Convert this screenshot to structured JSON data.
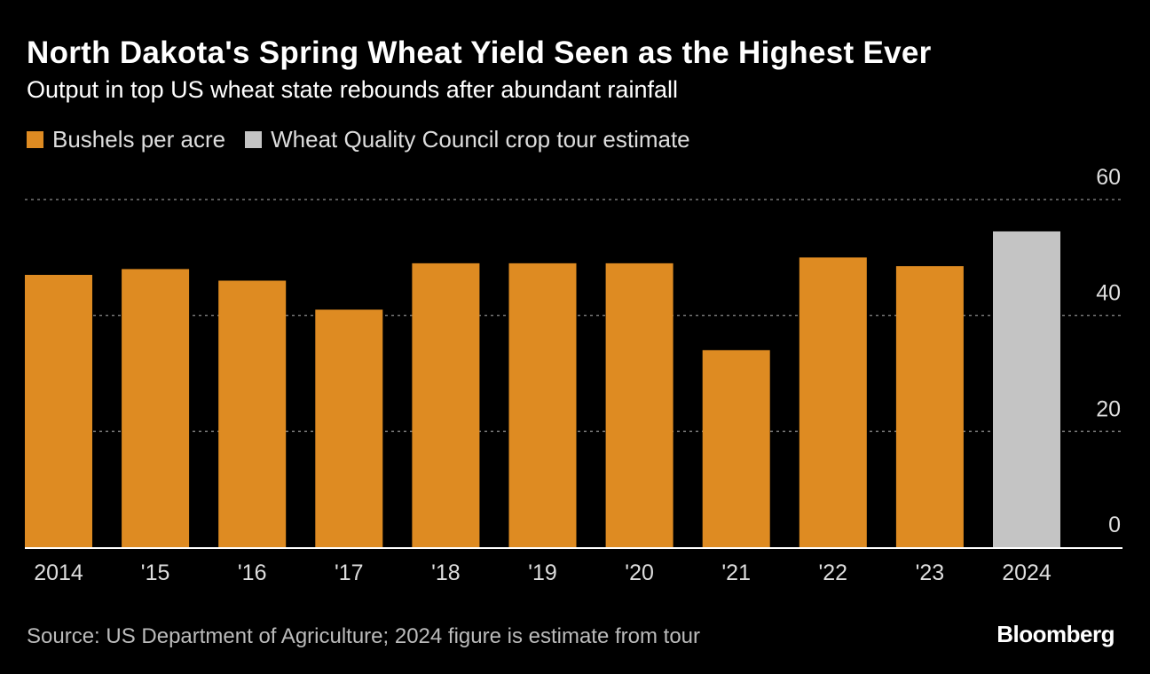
{
  "header": {
    "title": "North Dakota's Spring Wheat Yield Seen as the Highest Ever",
    "subtitle": "Output in top US wheat state rebounds after abundant rainfall"
  },
  "legend": [
    {
      "label": "Bushels per acre",
      "color": "#de8b22"
    },
    {
      "label": "Wheat Quality Council crop tour estimate",
      "color": "#c4c4c4"
    }
  ],
  "footer": {
    "source": "Source: US Department of Agriculture; 2024 figure is estimate from tour",
    "brand": "Bloomberg"
  },
  "colors": {
    "background": "#000000",
    "actual": "#de8b22",
    "estimate": "#c4c4c4",
    "gridline": "#777777",
    "axis": "#ffffff",
    "tick_text": "#dddddd"
  },
  "chart_data": {
    "type": "bar",
    "title": "North Dakota's Spring Wheat Yield Seen as the Highest Ever",
    "subtitle": "Output in top US wheat state rebounds after abundant rainfall",
    "categories": [
      "2014",
      "'15",
      "'16",
      "'17",
      "'18",
      "'19",
      "'20",
      "'21",
      "'22",
      "'23",
      "2024"
    ],
    "series": [
      {
        "name": "Bushels per acre",
        "values": [
          47,
          48,
          46,
          41,
          49,
          49,
          49,
          34,
          50,
          48.5,
          null
        ]
      },
      {
        "name": "Wheat Quality Council crop tour estimate",
        "values": [
          null,
          null,
          null,
          null,
          null,
          null,
          null,
          null,
          null,
          null,
          54.5
        ]
      }
    ],
    "ylim": [
      0,
      60
    ],
    "yticks": [
      0,
      20,
      40,
      60
    ],
    "yaxis_side": "right",
    "grid": true,
    "xlabel": "",
    "ylabel": ""
  }
}
